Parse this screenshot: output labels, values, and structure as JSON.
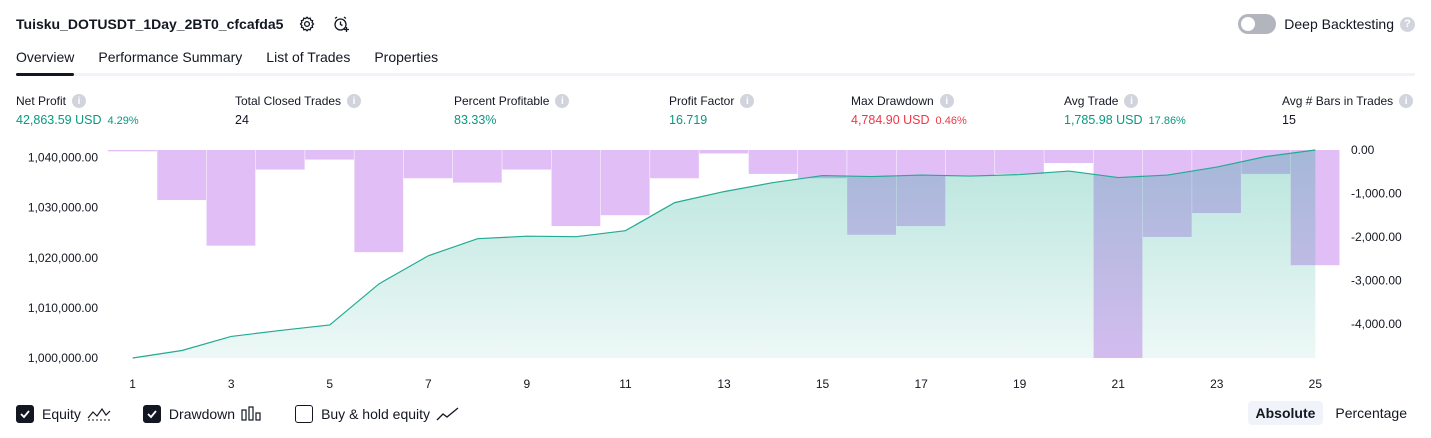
{
  "header": {
    "title": "Tuisku_DOTUSDT_1Day_2BT0_cfcafda5",
    "deep_backtesting_label": "Deep Backtesting"
  },
  "tabs": [
    {
      "label": "Overview",
      "active": true
    },
    {
      "label": "Performance Summary",
      "active": false
    },
    {
      "label": "List of Trades",
      "active": false
    },
    {
      "label": "Properties",
      "active": false
    }
  ],
  "stats": {
    "net_profit": {
      "label": "Net Profit",
      "value": "42,863.59 USD",
      "sub": "4.29%"
    },
    "total_closed_trades": {
      "label": "Total Closed Trades",
      "value": "24"
    },
    "percent_profitable": {
      "label": "Percent Profitable",
      "value": "83.33%"
    },
    "profit_factor": {
      "label": "Profit Factor",
      "value": "16.719"
    },
    "max_drawdown": {
      "label": "Max Drawdown",
      "value": "4,784.90 USD",
      "sub": "0.46%"
    },
    "avg_trade": {
      "label": "Avg Trade",
      "value": "1,785.98 USD",
      "sub": "17.86%"
    },
    "avg_bars": {
      "label": "Avg # Bars in Trades",
      "value": "15"
    }
  },
  "legend": {
    "equity": {
      "label": "Equity",
      "checked": true
    },
    "drawdown": {
      "label": "Drawdown",
      "checked": true
    },
    "buy_hold": {
      "label": "Buy & hold equity",
      "checked": false
    }
  },
  "mode": {
    "absolute": "Absolute",
    "percentage": "Percentage",
    "selected": "Absolute"
  },
  "colors": {
    "equity_line": "#22ab94",
    "equity_fill": "#22ab94",
    "drawdown_fill": "#ce93f2",
    "positive": "#089981",
    "negative": "#f23645"
  },
  "chart_data": {
    "type": "area",
    "x": [
      1,
      2,
      3,
      4,
      5,
      6,
      7,
      8,
      9,
      10,
      11,
      12,
      13,
      14,
      15,
      16,
      17,
      18,
      19,
      20,
      21,
      22,
      23,
      24,
      25
    ],
    "x_tick_labels": [
      "1",
      "3",
      "5",
      "7",
      "9",
      "11",
      "13",
      "15",
      "17",
      "19",
      "21",
      "23",
      "25"
    ],
    "x_tick_values": [
      1,
      3,
      5,
      7,
      9,
      11,
      13,
      15,
      17,
      19,
      21,
      23,
      25
    ],
    "series": [
      {
        "name": "Equity",
        "axis": "left",
        "values": [
          1000000,
          1001500,
          1004300,
          1005500,
          1006600,
          1014800,
          1020400,
          1023800,
          1024300,
          1024200,
          1025400,
          1031000,
          1033200,
          1035000,
          1036400,
          1036200,
          1036500,
          1036300,
          1036600,
          1037300,
          1036000,
          1036500,
          1038100,
          1040200,
          1041500
        ]
      },
      {
        "name": "Drawdown",
        "axis": "right",
        "values": [
          -30,
          -1150,
          -2200,
          -450,
          -220,
          -2350,
          -650,
          -750,
          -450,
          -1750,
          -1500,
          -650,
          -80,
          -550,
          -650,
          -1950,
          -1750,
          -600,
          -550,
          -300,
          -4784.9,
          -2000,
          -1450,
          -550,
          -2650
        ]
      }
    ],
    "y_left": {
      "ticks": [
        1000000,
        1010000,
        1020000,
        1030000,
        1040000
      ],
      "tick_labels": [
        "1,000,000.00",
        "1,010,000.00",
        "1,020,000.00",
        "1,030,000.00",
        "1,040,000.00"
      ],
      "range": [
        1000000,
        1041500
      ]
    },
    "y_right": {
      "ticks": [
        0,
        -1000,
        -2000,
        -3000,
        -4000
      ],
      "tick_labels": [
        "0.00",
        "-1,000.00",
        "-2,000.00",
        "-3,000.00",
        "-4,000.00"
      ],
      "range": [
        0,
        -4784.9
      ]
    },
    "grid": false
  }
}
